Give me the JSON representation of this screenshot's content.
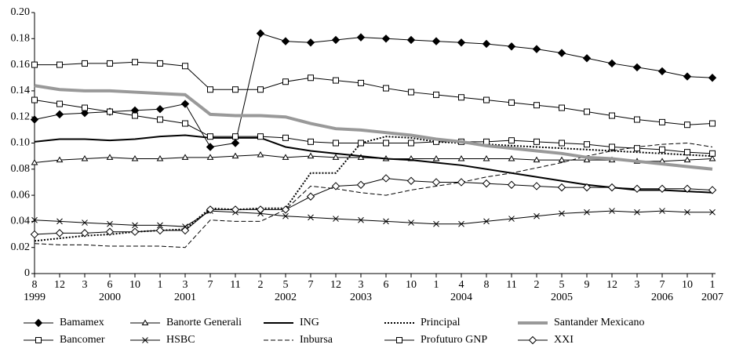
{
  "chart_data": {
    "type": "line",
    "categories": [
      "8",
      "12",
      "3",
      "6",
      "10",
      "1",
      "3",
      "7",
      "11",
      "2",
      "5",
      "7",
      "12",
      "3",
      "6",
      "10",
      "1",
      "4",
      "8",
      "11",
      "2",
      "5",
      "9",
      "12",
      "3",
      "7",
      "10",
      "1"
    ],
    "year_labels": [
      "1999",
      null,
      null,
      "2000",
      null,
      null,
      "2001",
      null,
      null,
      null,
      "2002",
      null,
      null,
      "2003",
      null,
      null,
      null,
      "2004",
      null,
      null,
      null,
      "2005",
      null,
      null,
      null,
      "2006",
      null,
      "2007"
    ],
    "ylim": [
      0,
      0.2
    ],
    "yticks": [
      0,
      0.02,
      0.04,
      0.06,
      0.08,
      {
        "value": 0.1,
        "label": "0.10"
      },
      0.12,
      0.14,
      0.16,
      0.18,
      {
        "value": 0.2,
        "label": "0.20"
      }
    ],
    "series": [
      {
        "name": "Bamamex",
        "color": "#000000",
        "width": 1,
        "dash": "none",
        "marker": "diamond",
        "values": [
          0.118,
          0.122,
          0.123,
          0.124,
          0.125,
          0.126,
          0.13,
          0.097,
          0.1,
          0.184,
          0.178,
          0.177,
          0.179,
          0.181,
          0.18,
          0.179,
          0.178,
          0.177,
          0.176,
          0.174,
          0.172,
          0.169,
          0.165,
          0.161,
          0.158,
          0.155,
          0.151,
          0.15
        ]
      },
      {
        "name": "Bancomer",
        "color": "#000000",
        "width": 1,
        "dash": "none",
        "marker": "square-open",
        "values": [
          0.16,
          0.16,
          0.161,
          0.161,
          0.162,
          0.161,
          0.159,
          0.141,
          0.141,
          0.141,
          0.147,
          0.15,
          0.148,
          0.146,
          0.142,
          0.139,
          0.137,
          0.135,
          0.133,
          0.131,
          0.129,
          0.127,
          0.124,
          0.121,
          0.118,
          0.116,
          0.114,
          0.115
        ]
      },
      {
        "name": "Banorte Generali",
        "color": "#000000",
        "width": 1,
        "dash": "none",
        "marker": "triangle-open",
        "values": [
          0.085,
          0.087,
          0.088,
          0.089,
          0.088,
          0.088,
          0.089,
          0.089,
          0.09,
          0.091,
          0.089,
          0.09,
          0.089,
          0.089,
          0.088,
          0.088,
          0.088,
          0.088,
          0.088,
          0.088,
          0.087,
          0.087,
          0.087,
          0.087,
          0.086,
          0.086,
          0.087,
          0.088
        ]
      },
      {
        "name": "HSBC",
        "color": "#000000",
        "width": 1,
        "dash": "none",
        "marker": "x",
        "values": [
          0.041,
          0.04,
          0.039,
          0.038,
          0.037,
          0.037,
          0.036,
          0.048,
          0.047,
          0.046,
          0.044,
          0.043,
          0.042,
          0.041,
          0.04,
          0.039,
          0.038,
          0.038,
          0.04,
          0.042,
          0.044,
          0.046,
          0.047,
          0.048,
          0.047,
          0.048,
          0.047,
          0.047
        ]
      },
      {
        "name": "ING",
        "color": "#000000",
        "width": 2,
        "dash": "none",
        "marker": "none",
        "values": [
          0.101,
          0.103,
          0.103,
          0.102,
          0.103,
          0.105,
          0.106,
          0.104,
          0.104,
          0.104,
          0.097,
          0.094,
          0.092,
          0.09,
          0.088,
          0.087,
          0.085,
          0.083,
          0.08,
          0.077,
          0.074,
          0.071,
          0.068,
          0.066,
          0.064,
          0.064,
          0.063,
          0.062
        ]
      },
      {
        "name": "Inbursa",
        "color": "#000000",
        "width": 1,
        "dash": "6,3",
        "marker": "none",
        "values": [
          0.023,
          0.022,
          0.022,
          0.021,
          0.021,
          0.021,
          0.02,
          0.041,
          0.04,
          0.04,
          0.049,
          0.067,
          0.065,
          0.062,
          0.06,
          0.064,
          0.067,
          0.07,
          0.074,
          0.077,
          0.081,
          0.085,
          0.09,
          0.094,
          0.097,
          0.099,
          0.1,
          0.097
        ]
      },
      {
        "name": "Principal",
        "color": "#000000",
        "width": 2,
        "dash": "2,2",
        "marker": "none",
        "values": [
          0.025,
          0.027,
          0.029,
          0.03,
          0.032,
          0.033,
          0.034,
          0.05,
          0.049,
          0.05,
          0.05,
          0.077,
          0.077,
          0.1,
          0.105,
          0.104,
          0.101,
          0.1,
          0.099,
          0.098,
          0.097,
          0.096,
          0.095,
          0.094,
          0.093,
          0.092,
          0.091,
          0.09
        ]
      },
      {
        "name": "Profuturo GNP",
        "color": "#000000",
        "width": 1,
        "dash": "none",
        "marker": "square-open",
        "values": [
          0.133,
          0.13,
          0.127,
          0.124,
          0.121,
          0.118,
          0.115,
          0.105,
          0.105,
          0.105,
          0.104,
          0.101,
          0.1,
          0.1,
          0.1,
          0.1,
          0.101,
          0.101,
          0.101,
          0.102,
          0.101,
          0.1,
          0.099,
          0.097,
          0.096,
          0.095,
          0.093,
          0.092
        ]
      },
      {
        "name": "Santander Mexicano",
        "color": "#999999",
        "width": 4,
        "dash": "none",
        "marker": "none",
        "values": [
          0.144,
          0.141,
          0.14,
          0.14,
          0.139,
          0.138,
          0.137,
          0.122,
          0.121,
          0.121,
          0.12,
          0.115,
          0.111,
          0.11,
          0.108,
          0.106,
          0.103,
          0.101,
          0.098,
          0.096,
          0.094,
          0.092,
          0.089,
          0.088,
          0.086,
          0.084,
          0.082,
          0.08
        ]
      },
      {
        "name": "XXI",
        "color": "#000000",
        "width": 1,
        "dash": "none",
        "marker": "diamond-open",
        "values": [
          0.03,
          0.031,
          0.031,
          0.032,
          0.032,
          0.033,
          0.033,
          0.049,
          0.049,
          0.049,
          0.049,
          0.059,
          0.067,
          0.068,
          0.073,
          0.071,
          0.07,
          0.07,
          0.069,
          0.068,
          0.067,
          0.066,
          0.066,
          0.066,
          0.065,
          0.065,
          0.065,
          0.064
        ]
      }
    ]
  }
}
